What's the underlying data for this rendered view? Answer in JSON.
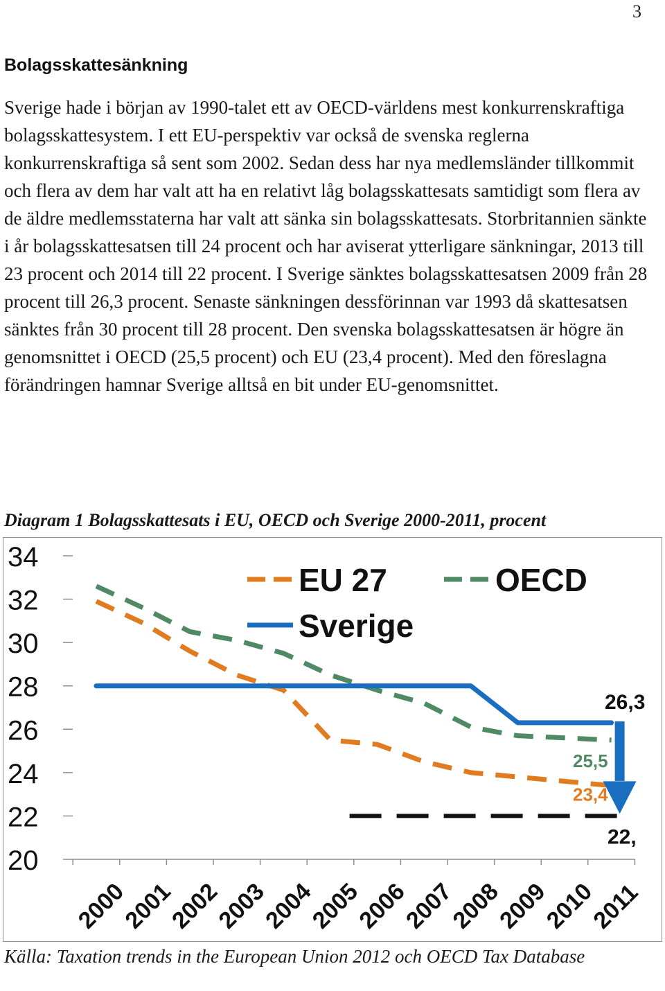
{
  "page_number": "3",
  "heading": "Bolagsskattesänkning",
  "body_text": "Sverige hade i början av 1990-talet ett av OECD-världens mest konkurrenskraftiga bolagsskattesystem. I ett EU-perspektiv var också de svenska reglerna konkurrenskraftiga så sent som 2002. Sedan dess har nya medlemsländer tillkommit och flera av dem har valt att ha en relativt låg bolagsskattesats samtidigt som flera av de äldre medlemsstaterna har valt att sänka sin bolagsskattesats. Storbritannien sänkte i år bolagsskattesatsen till 24 procent och har aviserat ytterligare sänkningar, 2013 till 23 procent och 2014 till 22 procent. I Sverige sänktes bolagsskattesatsen 2009 från 28 procent till 26,3 procent. Senaste sänkningen dessförinnan var 1993 då skattesatsen sänktes från 30 procent till 28 procent. Den svenska bolagsskattesatsen är högre än genomsnittet i OECD (25,5 procent) och EU (23,4 procent). Med den föreslagna förändringen hamnar Sverige alltså en bit under EU-genomsnittet.",
  "diagram_caption": "Diagram 1 Bolagsskattesats i EU, OECD och Sverige 2000-2011, procent",
  "source_note": "Källa: Taxation trends in the European Union 2012 och OECD Tax Database",
  "chart_data": {
    "type": "line",
    "title": "",
    "xlabel": "",
    "ylabel": "",
    "categories": [
      "2000",
      "2001",
      "2002",
      "2003",
      "2004",
      "2005",
      "2006",
      "2007",
      "2008",
      "2009",
      "2010",
      "2011"
    ],
    "ylim": [
      20,
      34
    ],
    "yticks": [
      "34",
      "32",
      "30",
      "28",
      "26",
      "24",
      "22",
      "20"
    ],
    "grid": false,
    "legend_position": "top",
    "series": [
      {
        "name": "EU 27",
        "color": "#e07b1f",
        "style": "dashed",
        "values": [
          31.9,
          30.9,
          29.6,
          28.5,
          27.8,
          25.5,
          25.3,
          24.5,
          24.0,
          23.8,
          23.6,
          23.4
        ]
      },
      {
        "name": "OECD",
        "color": "#4f8a65",
        "style": "dashed",
        "values": [
          32.6,
          31.6,
          30.5,
          30.1,
          29.5,
          28.5,
          27.8,
          27.2,
          26.1,
          25.7,
          25.6,
          25.5
        ]
      },
      {
        "name": "Sverige",
        "color": "#1a6ec0",
        "style": "solid",
        "values": [
          28,
          28,
          28,
          28,
          28,
          28,
          28,
          28,
          28,
          26.3,
          26.3,
          26.3
        ]
      }
    ],
    "reference_line": {
      "value": 22,
      "from": "2006",
      "to": "2011",
      "color": "#111111"
    },
    "annotations": [
      {
        "text": "26,3",
        "color": "#111111"
      },
      {
        "text": "25,5",
        "color": "#4f8a65"
      },
      {
        "text": "23,4",
        "color": "#e07b1f"
      },
      {
        "text": "22,",
        "color": "#111111"
      }
    ],
    "arrow_color": "#1a6ec0"
  }
}
